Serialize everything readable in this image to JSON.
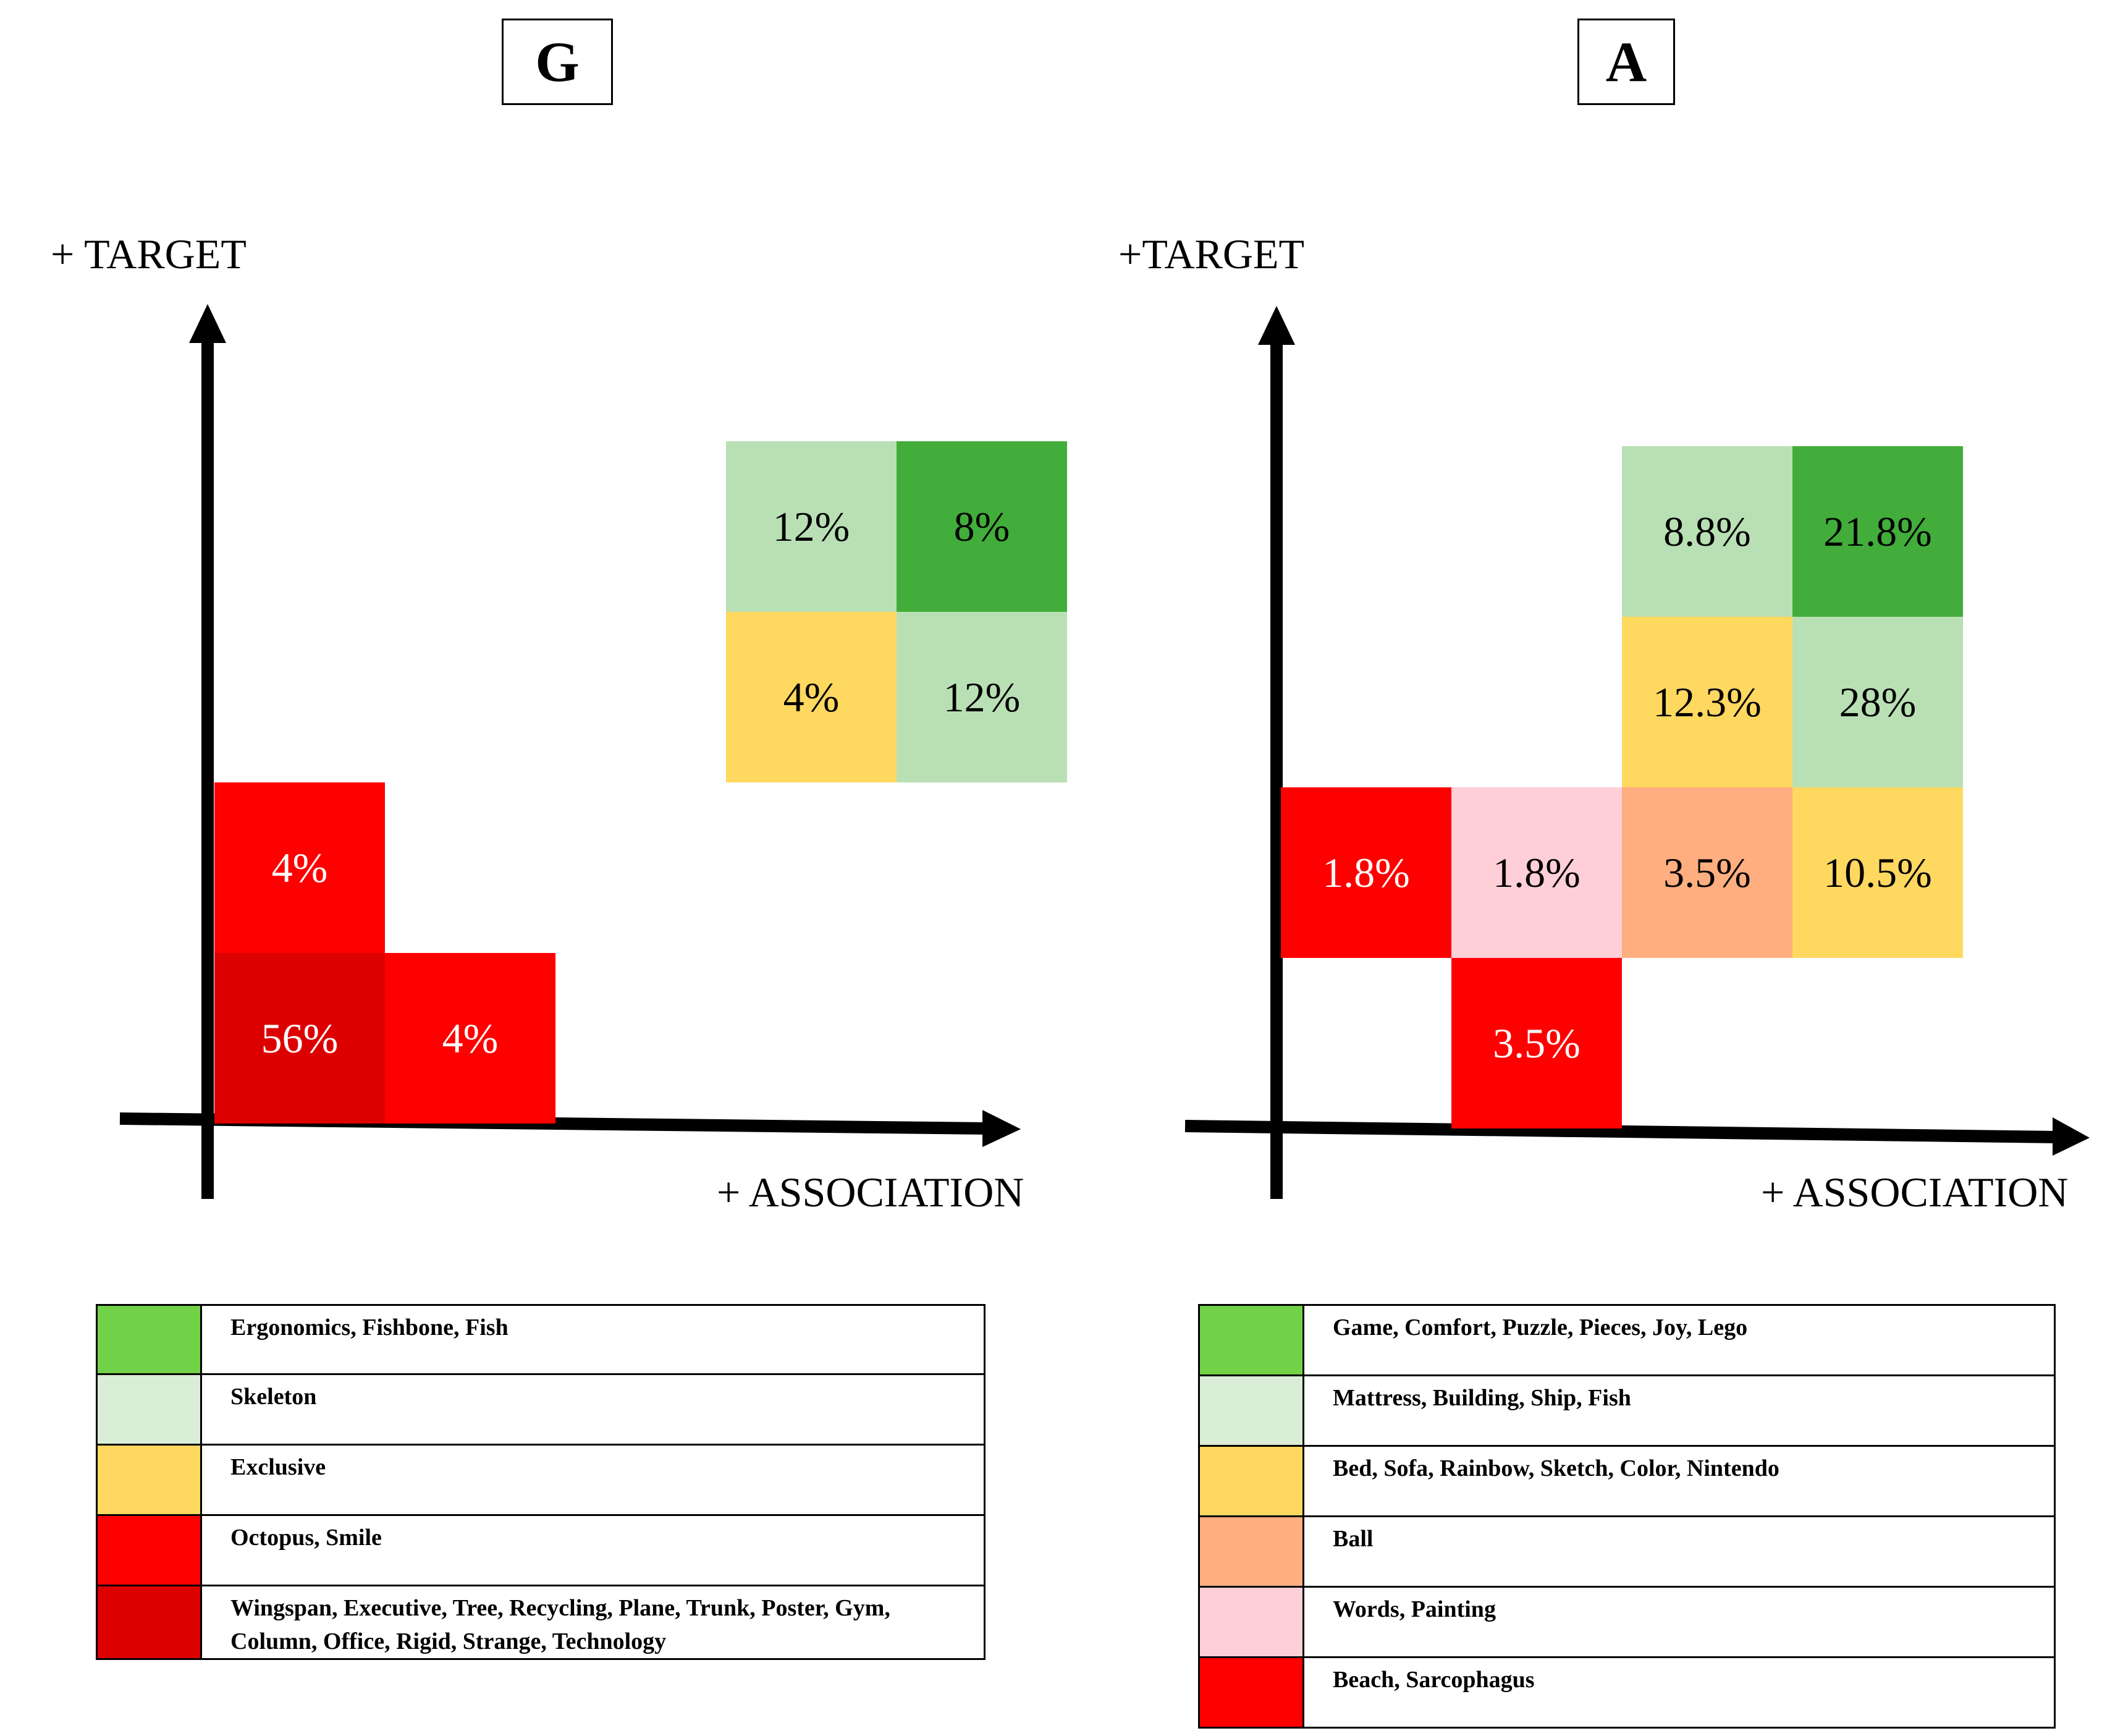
{
  "chart_data": [
    {
      "type": "heatmap",
      "panel_title": "G",
      "ylabel": "+ TARGET",
      "xlabel": "+ ASSOCIATION",
      "cells": [
        {
          "col": 3,
          "row": 4,
          "value": "12%",
          "color": "#b9e0b4",
          "text_color": "#000000"
        },
        {
          "col": 4,
          "row": 4,
          "value": "8%",
          "color": "#42ad3a",
          "text_color": "#000000"
        },
        {
          "col": 3,
          "row": 3,
          "value": "4%",
          "color": "#ffd85f",
          "text_color": "#000000"
        },
        {
          "col": 4,
          "row": 3,
          "value": "12%",
          "color": "#b9e0b4",
          "text_color": "#000000"
        },
        {
          "col": 0,
          "row": 2,
          "value": "4%",
          "color": "#ff0000",
          "text_color": "#ffffff"
        },
        {
          "col": 0,
          "row": 1,
          "value": "56%",
          "color": "#dd0000",
          "text_color": "#ffffff"
        },
        {
          "col": 1,
          "row": 1,
          "value": "4%",
          "color": "#ff0000",
          "text_color": "#ffffff"
        }
      ],
      "legend": [
        {
          "color": "#72d247",
          "label": "Ergonomics, Fishbone, Fish"
        },
        {
          "color": "#daeed7",
          "label": "Skeleton"
        },
        {
          "color": "#ffd85f",
          "label": "Exclusive"
        },
        {
          "color": "#ff0000",
          "label": "Octopus, Smile"
        },
        {
          "color": "#dd0000",
          "label": "Wingspan, Executive, Tree, Recycling, Plane, Trunk, Poster, Gym, Column, Office, Rigid, Strange, Technology"
        }
      ]
    },
    {
      "type": "heatmap",
      "panel_title": "A",
      "ylabel": "+TARGET",
      "xlabel": "+ ASSOCIATION",
      "cells": [
        {
          "col": 2,
          "row": 4,
          "value": "8.8%",
          "color": "#b9e0b4",
          "text_color": "#000000"
        },
        {
          "col": 3,
          "row": 4,
          "value": "21.8%",
          "color": "#42ad3a",
          "text_color": "#000000"
        },
        {
          "col": 2,
          "row": 3,
          "value": "12.3%",
          "color": "#ffd85f",
          "text_color": "#000000"
        },
        {
          "col": 3,
          "row": 3,
          "value": "28%",
          "color": "#b9e0b4",
          "text_color": "#000000"
        },
        {
          "col": 0,
          "row": 2,
          "value": "1.8%",
          "color": "#ff0000",
          "text_color": "#ffffff"
        },
        {
          "col": 1,
          "row": 2,
          "value": "1.8%",
          "color": "#ffcfd8",
          "text_color": "#000000"
        },
        {
          "col": 2,
          "row": 2,
          "value": "3.5%",
          "color": "#ffae80",
          "text_color": "#000000"
        },
        {
          "col": 3,
          "row": 2,
          "value": "10.5%",
          "color": "#ffd85f",
          "text_color": "#000000"
        },
        {
          "col": 1,
          "row": 1,
          "value": "3.5%",
          "color": "#ff0000",
          "text_color": "#ffffff"
        }
      ],
      "legend": [
        {
          "color": "#72d247",
          "label": "Game, Comfort, Puzzle, Pieces, Joy, Lego"
        },
        {
          "color": "#daeed7",
          "label": "Mattress, Building, Ship, Fish"
        },
        {
          "color": "#ffd85f",
          "label": "Bed, Sofa, Rainbow, Sketch, Color, Nintendo"
        },
        {
          "color": "#ffae80",
          "label": "Ball"
        },
        {
          "color": "#ffcfd8",
          "label": "Words, Painting"
        },
        {
          "color": "#ff0000",
          "label": "Beach, Sarcophagus"
        }
      ]
    }
  ]
}
